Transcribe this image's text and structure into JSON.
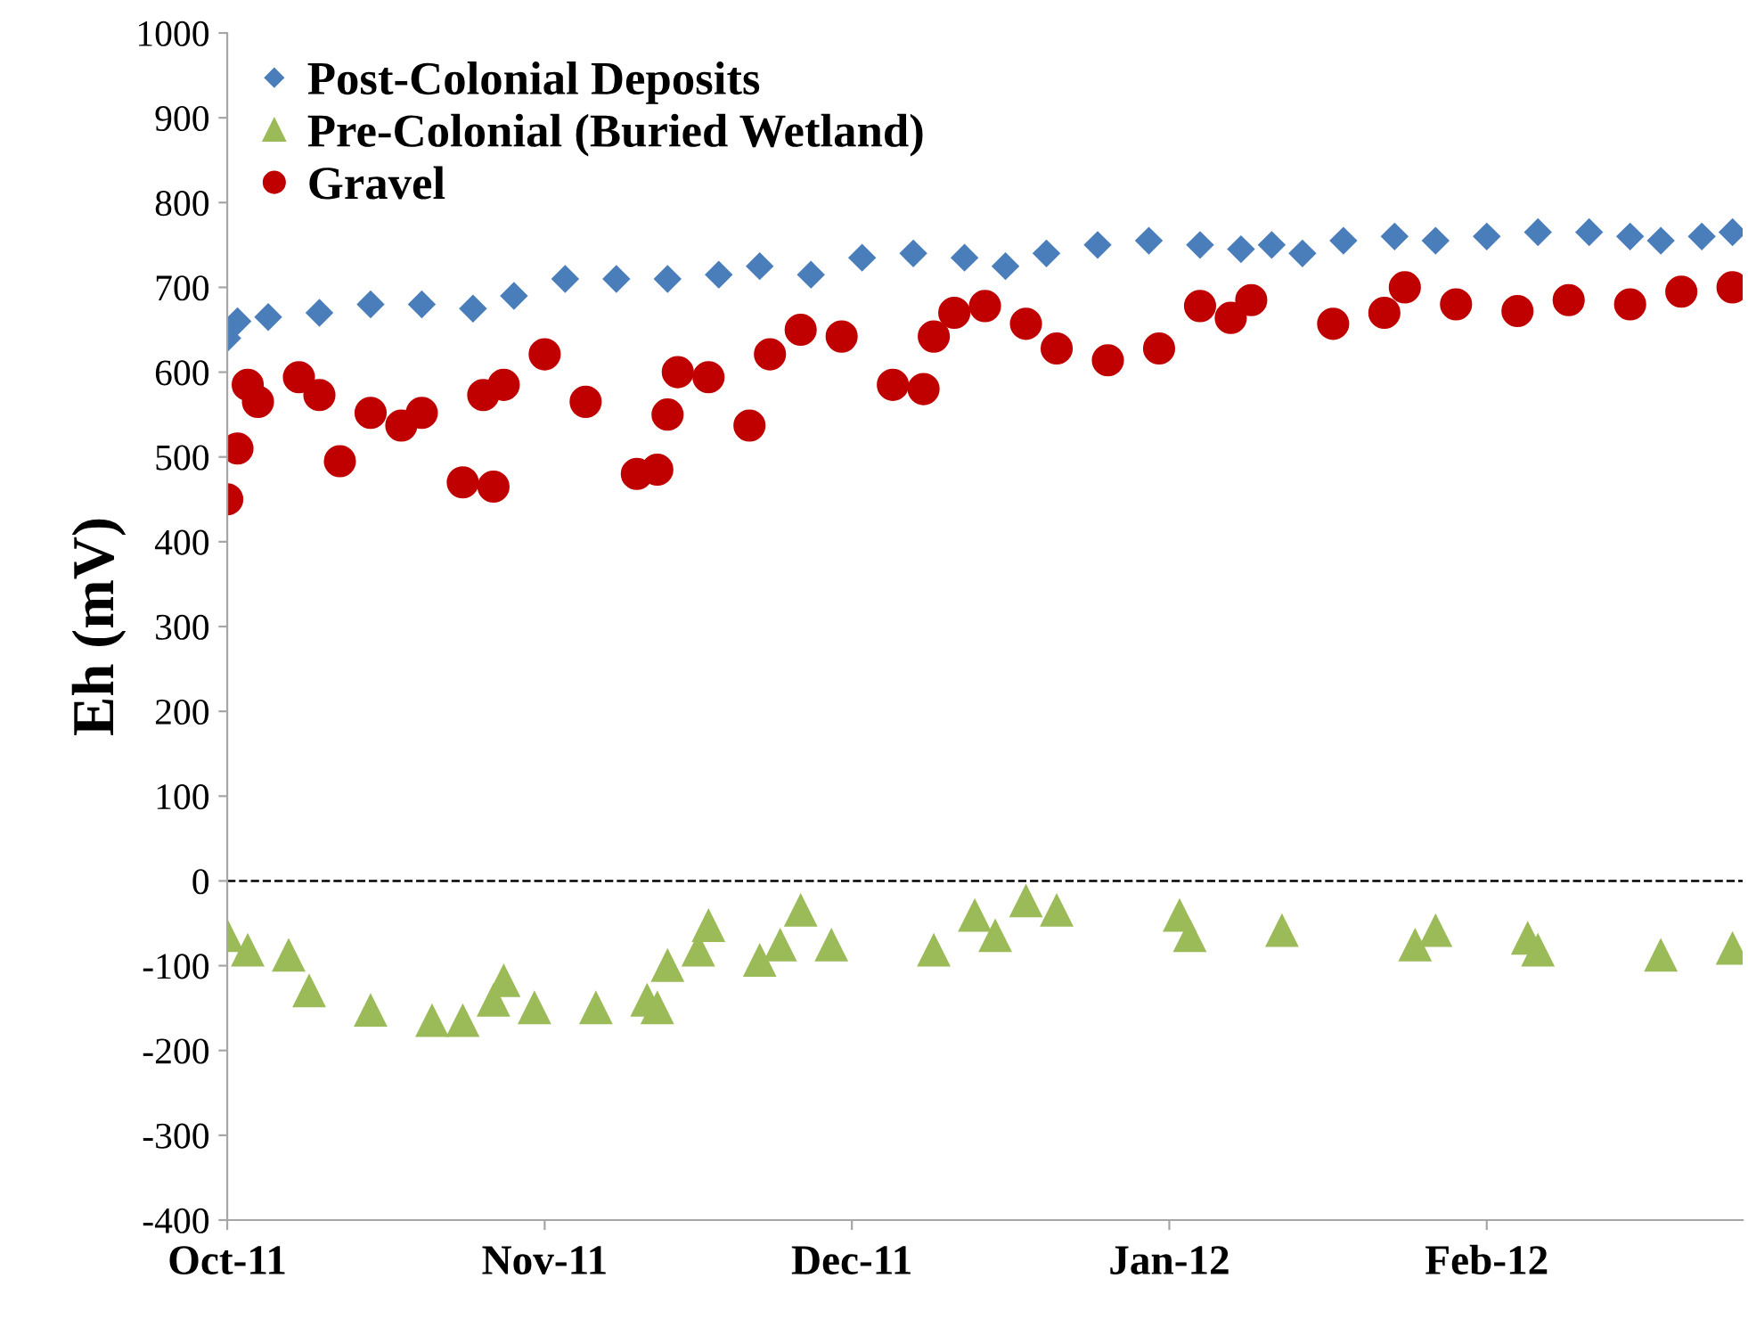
{
  "chart_data": {
    "type": "scatter",
    "ylabel": "Eh (mV)",
    "xlim": [
      "2011-10-01",
      "2012-02-26"
    ],
    "xticks": [
      {
        "value": "2011-10-01",
        "label": "Oct-11"
      },
      {
        "value": "2011-11-01",
        "label": "Nov-11"
      },
      {
        "value": "2011-12-01",
        "label": "Dec-11"
      },
      {
        "value": "2012-01-01",
        "label": "Jan-12"
      },
      {
        "value": "2012-02-01",
        "label": "Feb-12"
      }
    ],
    "ylim": [
      -400,
      1000
    ],
    "yticks": [
      -400,
      -300,
      -200,
      -100,
      0,
      100,
      200,
      300,
      400,
      500,
      600,
      700,
      800,
      900,
      1000
    ],
    "grid": false,
    "legend": "top left",
    "ref_lines": [
      {
        "axis": "y",
        "value": 0,
        "color": "#000000",
        "line_style": "dashed"
      }
    ],
    "series": [
      {
        "name": "Post-Colonial Deposits",
        "color": "#4a7ebb",
        "marker": "diamond",
        "x": [
          "2011-10-01",
          "2011-10-02",
          "2011-10-05",
          "2011-10-10",
          "2011-10-15",
          "2011-10-20",
          "2011-10-25",
          "2011-10-29",
          "2011-11-03",
          "2011-11-08",
          "2011-11-13",
          "2011-11-18",
          "2011-11-22",
          "2011-11-27",
          "2011-12-02",
          "2011-12-07",
          "2011-12-12",
          "2011-12-16",
          "2011-12-20",
          "2011-12-25",
          "2011-12-30",
          "2012-01-04",
          "2012-01-08",
          "2012-01-11",
          "2012-01-14",
          "2012-01-18",
          "2012-01-23",
          "2012-01-27",
          "2012-02-01",
          "2012-02-06",
          "2012-02-11",
          "2012-02-15",
          "2012-02-18",
          "2012-02-22",
          "2012-02-25"
        ],
        "values": [
          640,
          660,
          665,
          670,
          680,
          680,
          675,
          690,
          710,
          710,
          710,
          715,
          725,
          715,
          735,
          740,
          735,
          725,
          740,
          750,
          755,
          750,
          745,
          750,
          740,
          755,
          760,
          755,
          760,
          765,
          765,
          760,
          755,
          760,
          765
        ]
      },
      {
        "name": "Pre-Colonial (Buried Wetland)",
        "color": "#9bbb59",
        "marker": "triangle",
        "x": [
          "2011-10-01",
          "2011-10-03",
          "2011-10-07",
          "2011-10-09",
          "2011-10-15",
          "2011-10-21",
          "2011-10-24",
          "2011-10-27",
          "2011-10-28",
          "2011-10-31",
          "2011-11-06",
          "2011-11-11",
          "2011-11-12",
          "2011-11-13",
          "2011-11-16",
          "2011-11-17",
          "2011-11-22",
          "2011-11-24",
          "2011-11-26",
          "2011-11-29",
          "2011-12-09",
          "2011-12-13",
          "2011-12-15",
          "2011-12-18",
          "2011-12-21",
          "2012-01-02",
          "2012-01-03",
          "2012-01-12",
          "2012-01-25",
          "2012-01-27",
          "2012-02-05",
          "2012-02-06",
          "2012-02-18",
          "2012-02-25"
        ],
        "values": [
          -65,
          -82,
          -88,
          -130,
          -153,
          -165,
          -165,
          -141,
          -118,
          -150,
          -150,
          -141,
          -150,
          -100,
          -82,
          -53,
          -94,
          -76,
          -35,
          -76,
          -82,
          -41,
          -65,
          -24,
          -35,
          -41,
          -65,
          -59,
          -76,
          -59,
          -68,
          -82,
          -88,
          -80
        ]
      },
      {
        "name": "Gravel",
        "color": "#c00000",
        "marker": "circle",
        "x": [
          "2011-10-01",
          "2011-10-02",
          "2011-10-03",
          "2011-10-04",
          "2011-10-08",
          "2011-10-10",
          "2011-10-12",
          "2011-10-15",
          "2011-10-18",
          "2011-10-20",
          "2011-10-24",
          "2011-10-26",
          "2011-10-27",
          "2011-10-28",
          "2011-11-01",
          "2011-11-05",
          "2011-11-10",
          "2011-11-12",
          "2011-11-13",
          "2011-11-14",
          "2011-11-17",
          "2011-11-21",
          "2011-11-23",
          "2011-11-26",
          "2011-11-30",
          "2011-12-05",
          "2011-12-08",
          "2011-12-09",
          "2011-12-11",
          "2011-12-14",
          "2011-12-18",
          "2011-12-21",
          "2011-12-26",
          "2011-12-31",
          "2012-01-04",
          "2012-01-07",
          "2012-01-09",
          "2012-01-17",
          "2012-01-22",
          "2012-01-24",
          "2012-01-29",
          "2012-02-04",
          "2012-02-09",
          "2012-02-15",
          "2012-02-20",
          "2012-02-25"
        ],
        "values": [
          450,
          510,
          585,
          565,
          594,
          573,
          495,
          552,
          537,
          552,
          470,
          573,
          465,
          585,
          621,
          565,
          480,
          485,
          550,
          600,
          594,
          537,
          621,
          650,
          642,
          585,
          580,
          642,
          670,
          678,
          657,
          628,
          614,
          628,
          678,
          664,
          685,
          657,
          670,
          700,
          680,
          672,
          685,
          680,
          695,
          700
        ]
      }
    ]
  }
}
